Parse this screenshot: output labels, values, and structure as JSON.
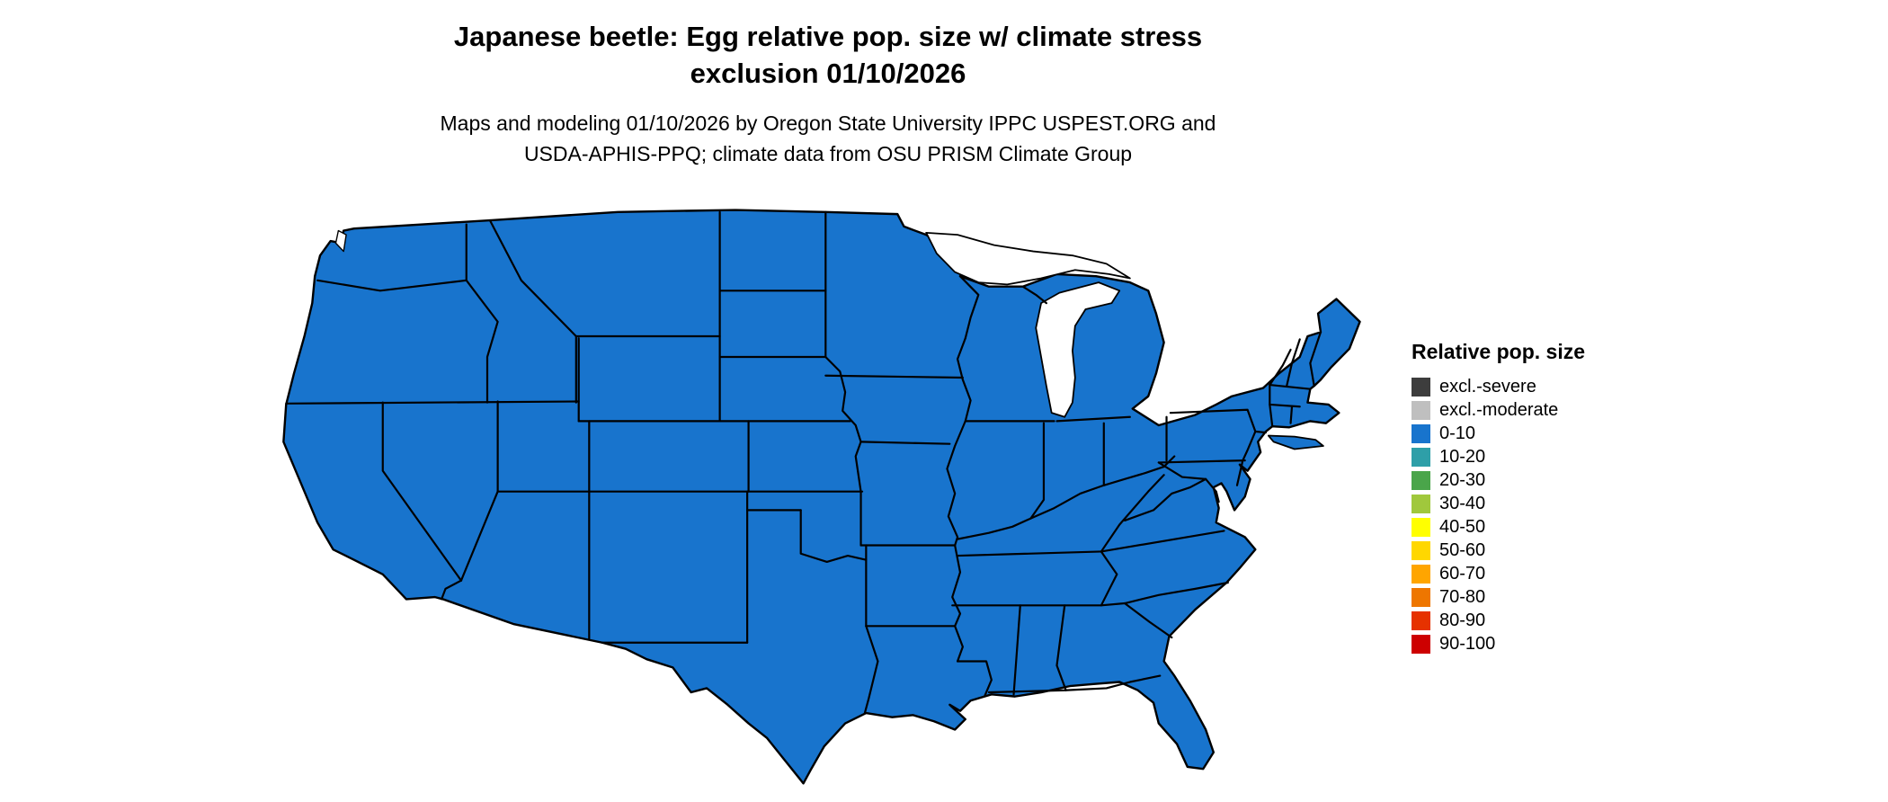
{
  "title": {
    "line1": "Japanese beetle: Egg relative pop. size w/ climate stress",
    "line2": "exclusion 01/10/2026"
  },
  "subtitle": {
    "line1": "Maps and modeling 01/10/2026 by Oregon State University IPPC USPEST.ORG and",
    "line2": "USDA-APHIS-PPQ; climate data from OSU PRISM Climate Group"
  },
  "legend": {
    "title": "Relative pop. size",
    "items": [
      {
        "label": "excl.-severe",
        "color": "#3d3d3d"
      },
      {
        "label": "excl.-moderate",
        "color": "#bfbfbf"
      },
      {
        "label": "0-10",
        "color": "#1874cd"
      },
      {
        "label": "10-20",
        "color": "#2e9fa8"
      },
      {
        "label": "20-30",
        "color": "#4aa54a"
      },
      {
        "label": "30-40",
        "color": "#a0c83c"
      },
      {
        "label": "40-50",
        "color": "#ffff00"
      },
      {
        "label": "50-60",
        "color": "#ffd700"
      },
      {
        "label": "60-70",
        "color": "#ffa500"
      },
      {
        "label": "70-80",
        "color": "#ee7600"
      },
      {
        "label": "80-90",
        "color": "#e63200"
      },
      {
        "label": "90-100",
        "color": "#cd0000"
      }
    ]
  },
  "map": {
    "region": "contiguous United States",
    "uniform_value": "0-10",
    "fill_color": "#1874cd",
    "border_color": "#000000",
    "water_color": "#ffffff"
  }
}
